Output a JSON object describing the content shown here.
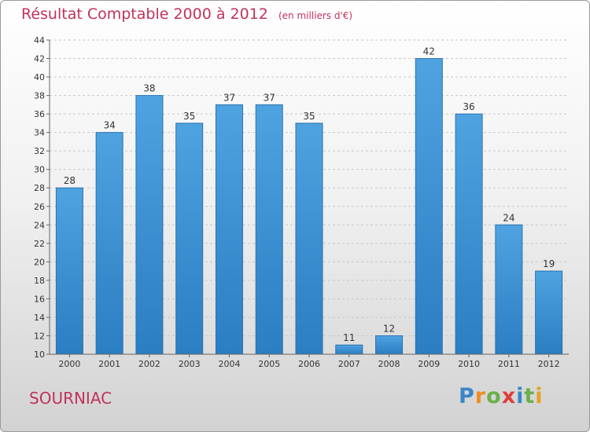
{
  "chart_data": {
    "type": "bar",
    "title": "Résultat Comptable 2000 à 2012",
    "subtitle": "(en milliers d'€)",
    "xlabel": "",
    "ylabel": "",
    "categories": [
      "2000",
      "2001",
      "2002",
      "2003",
      "2004",
      "2005",
      "2006",
      "2007",
      "2008",
      "2009",
      "2010",
      "2011",
      "2012"
    ],
    "values": [
      28,
      34,
      38,
      35,
      37,
      37,
      35,
      11,
      12,
      42,
      36,
      24,
      19
    ],
    "ylim": [
      10,
      44
    ],
    "yticks": [
      10,
      12,
      14,
      16,
      18,
      20,
      22,
      24,
      26,
      28,
      30,
      32,
      34,
      36,
      38,
      40,
      42,
      44
    ],
    "grid": true,
    "bar_color": "#4fa3e0",
    "bar_color_dark": "#2a7ec2"
  },
  "footer": {
    "place": "SOURNIAC"
  },
  "logo": {
    "letters": [
      "P",
      "r",
      "o",
      "x",
      "i",
      "t",
      "i"
    ],
    "colors": [
      "#3a86c8",
      "#f08c1e",
      "#6ab04c",
      "#e03c3c",
      "#3a86c8",
      "#6ab04c",
      "#e8a020"
    ]
  }
}
